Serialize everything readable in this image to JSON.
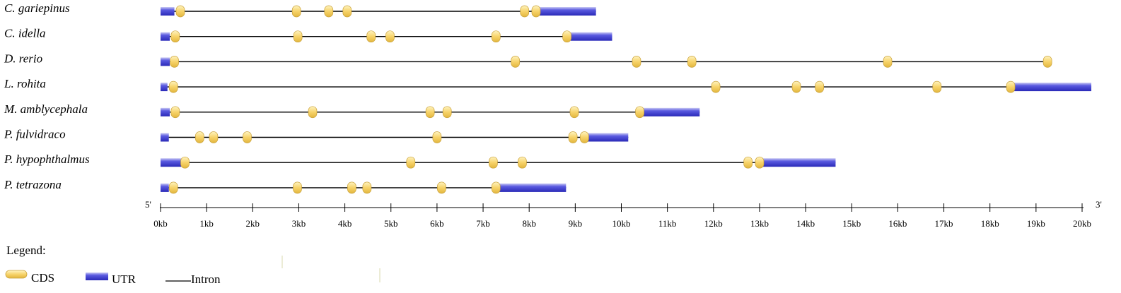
{
  "chart_data": {
    "type": "gene-structure",
    "axis": {
      "min": 0,
      "max": 20,
      "unit": "kb",
      "tick_labels": [
        "0kb",
        "1kb",
        "2kb",
        "3kb",
        "4kb",
        "5kb",
        "6kb",
        "7kb",
        "8kb",
        "9kb",
        "10kb",
        "11kb",
        "12kb",
        "13kb",
        "14kb",
        "15kb",
        "16kb",
        "17kb",
        "18kb",
        "19kb",
        "20kb"
      ],
      "start_label": "5'",
      "end_label": "3'"
    },
    "colors": {
      "cds": "#f5d46a",
      "utr": "#4646d6",
      "intron": "#000000",
      "highlight": "#ff0000"
    },
    "legend": {
      "title": "Legend:",
      "items": [
        {
          "type": "cds",
          "label": "CDS"
        },
        {
          "type": "utr",
          "label": "UTR"
        },
        {
          "type": "intron",
          "label": "Intron"
        }
      ]
    },
    "genes": [
      {
        "name": "C. gariepinus",
        "highlight": false,
        "end": 9.45,
        "utr": [
          [
            0,
            0.3
          ],
          [
            8.2,
            9.45
          ]
        ],
        "cds": [
          0.43,
          2.95,
          3.65,
          4.05,
          7.9,
          8.15
        ]
      },
      {
        "name": "C. idella",
        "highlight": false,
        "end": 9.8,
        "utr": [
          [
            0,
            0.2
          ],
          [
            8.9,
            9.8
          ]
        ],
        "cds": [
          0.32,
          2.98,
          4.57,
          4.98,
          7.28,
          8.82
        ]
      },
      {
        "name": "D. rerio",
        "highlight": false,
        "end": 19.3,
        "utr": [
          [
            0,
            0.2
          ],
          [
            19.2,
            19.3
          ]
        ],
        "cds": [
          0.3,
          7.7,
          10.33,
          11.53,
          15.78,
          19.25
        ]
      },
      {
        "name": "L. rohita",
        "highlight": false,
        "end": 20.2,
        "utr": [
          [
            0,
            0.15
          ],
          [
            18.5,
            20.2
          ]
        ],
        "cds": [
          0.28,
          12.05,
          13.8,
          14.3,
          16.85,
          18.45
        ]
      },
      {
        "name": "M. amblycephala",
        "highlight": false,
        "end": 11.7,
        "utr": [
          [
            0,
            0.2
          ],
          [
            10.45,
            11.7
          ]
        ],
        "cds": [
          0.32,
          3.3,
          5.85,
          6.22,
          8.98,
          10.4
        ]
      },
      {
        "name": "P. fulvidraco",
        "highlight": true,
        "end": 10.15,
        "utr": [
          [
            0,
            0.18
          ],
          [
            9.25,
            10.15
          ]
        ],
        "cds": [
          0.85,
          1.15,
          1.88,
          6.0,
          8.95,
          9.2
        ]
      },
      {
        "name": "P. hypophthalmus",
        "highlight": false,
        "end": 14.65,
        "utr": [
          [
            0,
            0.45
          ],
          [
            13.05,
            14.65
          ]
        ],
        "cds": [
          0.53,
          5.43,
          7.22,
          7.85,
          12.75,
          13.0
        ]
      },
      {
        "name": "P. tetrazona",
        "highlight": false,
        "end": 8.8,
        "utr": [
          [
            0,
            0.18
          ],
          [
            7.35,
            8.8
          ]
        ],
        "cds": [
          0.28,
          2.97,
          4.15,
          4.48,
          6.1,
          7.28
        ]
      }
    ]
  }
}
